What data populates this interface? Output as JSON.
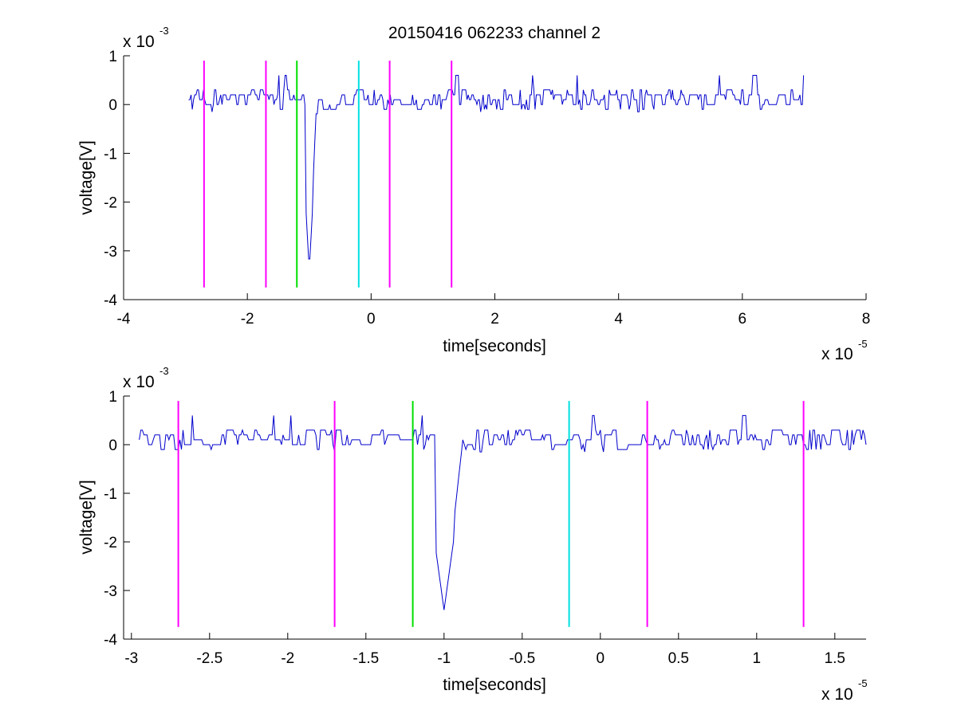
{
  "chart_data": [
    {
      "type": "line",
      "title": "20150416 062233 channel 2",
      "xlabel": "time[seconds]",
      "ylabel": "voltage[V]",
      "x_exponent": "x 10",
      "x_exponent_power": "-5",
      "y_exponent": "x 10",
      "y_exponent_power": "-3",
      "xlim": [
        -4,
        8
      ],
      "ylim": [
        -4,
        1
      ],
      "xticks": [
        -4,
        -2,
        0,
        2,
        4,
        6,
        8
      ],
      "xtick_labels": [
        "-4",
        "-2",
        "0",
        "2",
        "4",
        "6",
        "8"
      ],
      "yticks": [
        -4,
        -3,
        -2,
        -1,
        0,
        1
      ],
      "ytick_labels": [
        "-4",
        "-3",
        "-2",
        "-1",
        "0",
        "1"
      ],
      "grid": false,
      "series": [
        {
          "color": "#0000cc",
          "x_range": [
            -2.95,
            7.0
          ],
          "baseline": 0.1,
          "noise_amplitude": 0.2,
          "spike": {
            "x": -1.0,
            "min": -3.4
          },
          "x_step": 0.02
        }
      ],
      "markers": [
        {
          "x": -2.7,
          "color": "#ff00ff",
          "y_range": [
            -3.75,
            0.9
          ]
        },
        {
          "x": -1.7,
          "color": "#ff00ff",
          "y_range": [
            -3.75,
            0.9
          ]
        },
        {
          "x": -1.2,
          "color": "#00e000",
          "y_range": [
            -3.75,
            0.9
          ]
        },
        {
          "x": -0.2,
          "color": "#00e0e0",
          "y_range": [
            -3.75,
            0.9
          ]
        },
        {
          "x": 0.3,
          "color": "#ff00ff",
          "y_range": [
            -3.75,
            0.9
          ]
        },
        {
          "x": 1.3,
          "color": "#ff00ff",
          "y_range": [
            -3.75,
            0.9
          ]
        }
      ]
    },
    {
      "type": "line",
      "title": "",
      "xlabel": "time[seconds]",
      "ylabel": "voltage[V]",
      "x_exponent": "x 10",
      "x_exponent_power": "-5",
      "y_exponent": "x 10",
      "y_exponent_power": "-3",
      "xlim": [
        -3.05,
        1.7
      ],
      "ylim": [
        -4,
        1
      ],
      "xticks": [
        -3,
        -2.5,
        -2,
        -1.5,
        -1,
        -0.5,
        0,
        0.5,
        1,
        1.5
      ],
      "xtick_labels": [
        "-3",
        "-2.5",
        "-2",
        "-1.5",
        "-1",
        "-0.5",
        "0",
        "0.5",
        "1",
        "1.5"
      ],
      "yticks": [
        -4,
        -3,
        -2,
        -1,
        0,
        1
      ],
      "ytick_labels": [
        "-4",
        "-3",
        "-2",
        "-1",
        "0",
        "1"
      ],
      "grid": false,
      "series": [
        {
          "color": "#0000cc",
          "x_range": [
            -2.95,
            1.7
          ],
          "baseline": 0.1,
          "noise_amplitude": 0.2,
          "spike": {
            "x": -1.0,
            "min": -3.4
          },
          "x_step": 0.01
        }
      ],
      "markers": [
        {
          "x": -2.7,
          "color": "#ff00ff",
          "y_range": [
            -3.75,
            0.9
          ]
        },
        {
          "x": -1.7,
          "color": "#ff00ff",
          "y_range": [
            -3.75,
            0.9
          ]
        },
        {
          "x": -1.2,
          "color": "#00e000",
          "y_range": [
            -3.75,
            0.9
          ]
        },
        {
          "x": -0.2,
          "color": "#00e0e0",
          "y_range": [
            -3.75,
            0.9
          ]
        },
        {
          "x": 0.3,
          "color": "#ff00ff",
          "y_range": [
            -3.75,
            0.9
          ]
        },
        {
          "x": 1.3,
          "color": "#ff00ff",
          "y_range": [
            -3.75,
            0.9
          ]
        }
      ]
    }
  ]
}
